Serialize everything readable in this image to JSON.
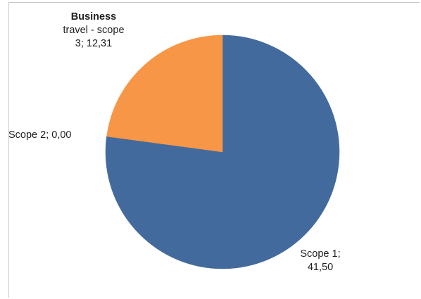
{
  "chart_data": {
    "type": "pie",
    "title": "",
    "slices": [
      {
        "name": "Scope 1",
        "value": 41.5,
        "value_label": "41,50",
        "color": "#436A9C"
      },
      {
        "name": "Scope 2",
        "value": 0.0,
        "value_label": "0,00",
        "color": "#B44E4E"
      },
      {
        "name": "Business travel - scope 3",
        "value": 12.31,
        "value_label": "12,31",
        "color": "#F79646"
      }
    ],
    "labels": {
      "scope1": {
        "line1": "Scope 1;",
        "line2": "41,50"
      },
      "scope2": {
        "line1": "Scope 2; 0,00"
      },
      "business": {
        "line1": "Business",
        "line2": "travel - scope",
        "line3": "3; 12,31"
      }
    },
    "legend": "none",
    "grid": false
  }
}
